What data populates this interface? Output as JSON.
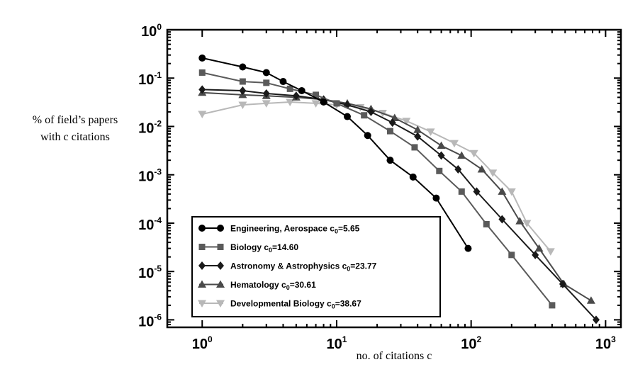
{
  "chart_data": {
    "type": "line",
    "xscale": "log",
    "yscale": "log",
    "xlim": [
      0.55,
      1300
    ],
    "ylim": [
      7e-07,
      1
    ],
    "ylabel_lines": [
      "% of field’s papers",
      "with c citations"
    ],
    "xlabel": "no. of citations c",
    "x_ticks": [
      {
        "value": 1,
        "base": "10",
        "exp": "0"
      },
      {
        "value": 10,
        "base": "10",
        "exp": "1"
      },
      {
        "value": 100,
        "base": "10",
        "exp": "2"
      },
      {
        "value": 1000,
        "base": "10",
        "exp": "3"
      }
    ],
    "y_ticks": [
      {
        "value": 1,
        "base": "10",
        "exp": "0"
      },
      {
        "value": 0.1,
        "base": "10",
        "exp": "-1"
      },
      {
        "value": 0.01,
        "base": "10",
        "exp": "-2"
      },
      {
        "value": 0.001,
        "base": "10",
        "exp": "-3"
      },
      {
        "value": 0.0001,
        "base": "10",
        "exp": "-4"
      },
      {
        "value": 1e-05,
        "base": "10",
        "exp": "-5"
      },
      {
        "value": 1e-06,
        "base": "10",
        "exp": "-6"
      }
    ],
    "legend_position": "bottom-left",
    "series": [
      {
        "name": "Engineering, Aerospace",
        "c0_label": "c",
        "c0_sub": "0",
        "c0_value": "=5.65",
        "marker": "circle",
        "color": "#000000",
        "x": [
          1,
          2,
          3,
          4,
          5.5,
          8,
          12,
          17,
          25,
          37,
          55,
          95
        ],
        "y": [
          0.26,
          0.17,
          0.13,
          0.085,
          0.055,
          0.032,
          0.016,
          0.0065,
          0.002,
          0.0009,
          0.00033,
          3e-05
        ]
      },
      {
        "name": "Biology",
        "c0_label": "c",
        "c0_sub": "0",
        "c0_value": "=14.60",
        "marker": "square",
        "color": "#5a5a5a",
        "x": [
          1,
          2,
          3,
          4.5,
          7,
          10,
          16,
          25,
          38,
          58,
          85,
          130,
          200,
          400
        ],
        "y": [
          0.13,
          0.085,
          0.08,
          0.06,
          0.045,
          0.03,
          0.017,
          0.008,
          0.0037,
          0.0012,
          0.00045,
          9.5e-05,
          2.2e-05,
          2e-06
        ]
      },
      {
        "name": "Astronomy & Astrophysics",
        "c0_label": "c",
        "c0_sub": "0",
        "c0_value": "=23.77",
        "marker": "diamond",
        "color": "#1a1a1a",
        "x": [
          1,
          2,
          3,
          5,
          8,
          12,
          18,
          26,
          40,
          60,
          80,
          110,
          170,
          300,
          480,
          850
        ],
        "y": [
          0.058,
          0.055,
          0.048,
          0.043,
          0.036,
          0.028,
          0.02,
          0.012,
          0.0062,
          0.0025,
          0.0013,
          0.00045,
          0.00012,
          2.2e-05,
          5.5e-06,
          1e-06
        ]
      },
      {
        "name": "Hematology",
        "c0_label": "c",
        "c0_sub": "0",
        "c0_value": "=30.61",
        "marker": "triangle-up",
        "color": "#4a4a4a",
        "x": [
          1,
          2,
          3,
          5,
          8,
          12,
          18,
          27,
          40,
          60,
          85,
          120,
          170,
          230,
          320,
          490,
          780
        ],
        "y": [
          0.05,
          0.045,
          0.043,
          0.04,
          0.036,
          0.03,
          0.023,
          0.015,
          0.0085,
          0.004,
          0.0025,
          0.0013,
          0.00045,
          0.00011,
          3e-05,
          5.5e-06,
          2.5e-06
        ]
      },
      {
        "name": "Developmental Biology",
        "c0_label": "c",
        "c0_sub": "0",
        "c0_value": "=38.67",
        "marker": "triangle-down",
        "color": "#b8b8b8",
        "x": [
          1,
          2,
          3,
          4.5,
          7,
          10,
          15,
          22,
          33,
          50,
          75,
          105,
          145,
          200,
          260,
          390
        ],
        "y": [
          0.018,
          0.028,
          0.03,
          0.032,
          0.03,
          0.028,
          0.025,
          0.019,
          0.013,
          0.0078,
          0.0045,
          0.0028,
          0.0011,
          0.00045,
          0.0001,
          2.6e-05
        ]
      }
    ]
  }
}
